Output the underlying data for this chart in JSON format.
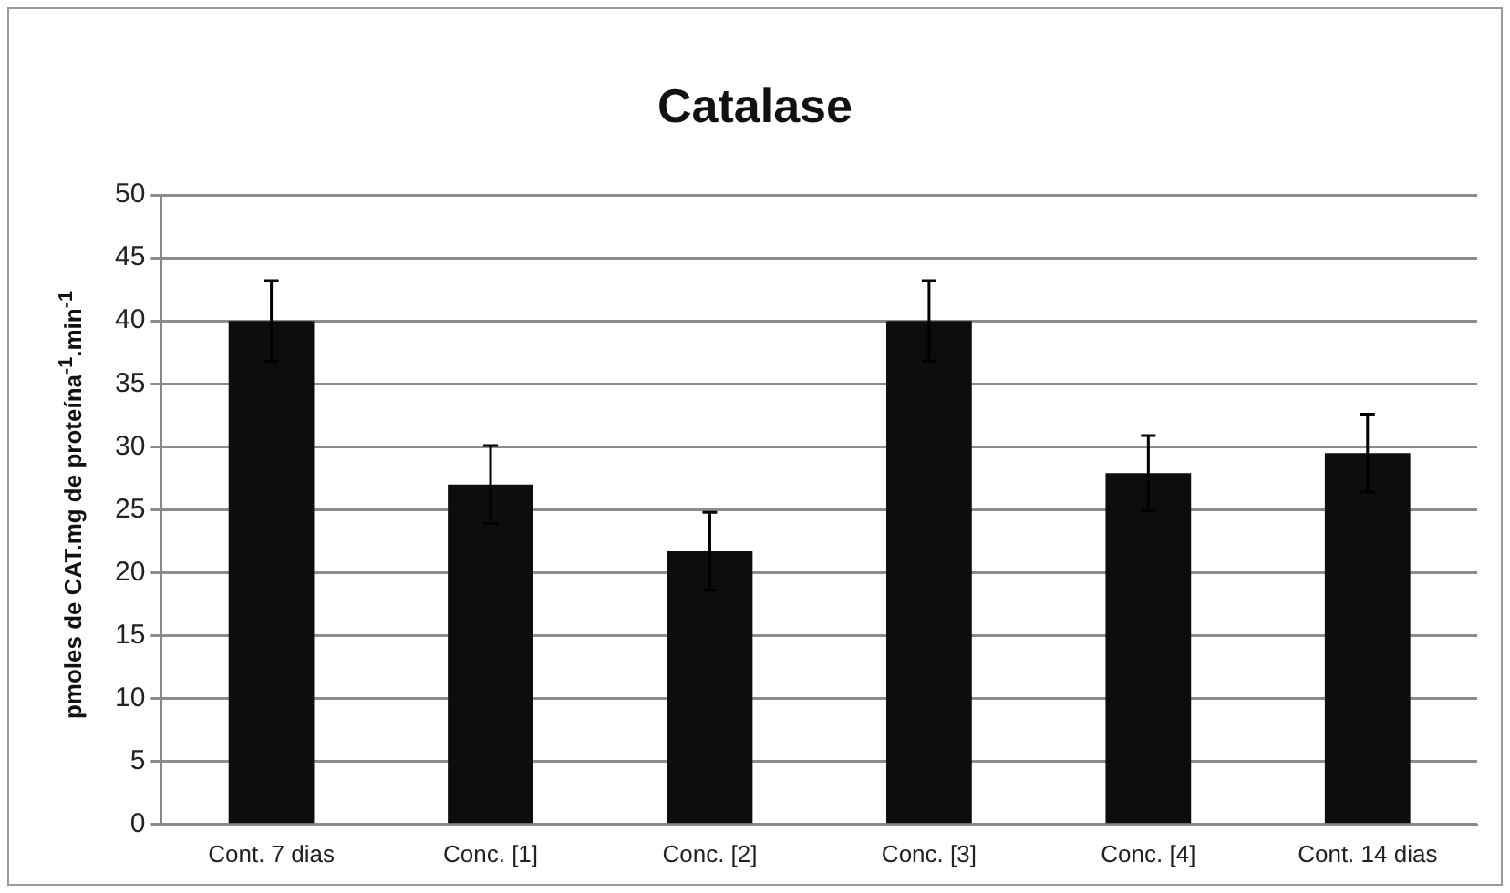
{
  "chart_data": {
    "type": "bar",
    "title": "Catalase",
    "ylabel": "pmoles de CAT.mg de proteína$^{-1}$.min$^{-1}$",
    "categories": [
      "Cont. 7 dias",
      "Conc. [1]",
      "Conc. [2]",
      "Conc. [3]",
      "Conc. [4]",
      "Cont. 14 dias"
    ],
    "values": [
      40,
      27,
      21.7,
      40,
      27.9,
      29.5
    ],
    "errors": [
      3.2,
      3.1,
      3.1,
      3.2,
      3,
      3.1
    ],
    "color": "#0d0d0d",
    "ylim": [
      0,
      50
    ],
    "yticks": [
      0,
      5,
      10,
      15,
      20,
      25,
      30,
      35,
      40,
      45,
      50
    ],
    "grid": "y",
    "legend": false
  }
}
